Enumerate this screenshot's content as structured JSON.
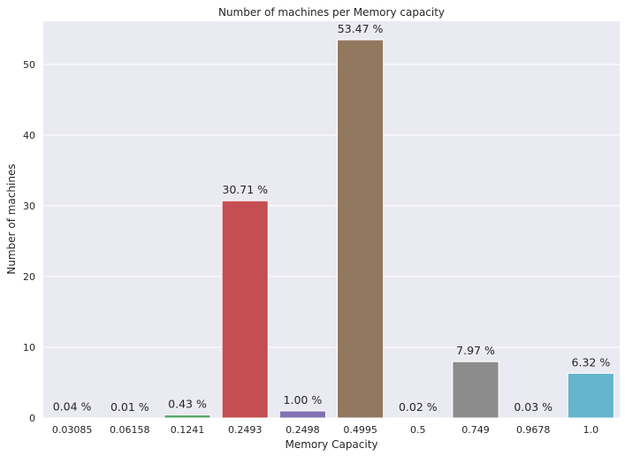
{
  "chart_data": {
    "type": "bar",
    "title": "Number of machines per Memory capacity",
    "xlabel": "Memory Capacity",
    "ylabel": "Number of machines",
    "categories": [
      "0.03085",
      "0.06158",
      "0.1241",
      "0.2493",
      "0.2498",
      "0.4995",
      "0.5",
      "0.749",
      "0.9678",
      "1.0"
    ],
    "values": [
      0.04,
      0.01,
      0.43,
      30.71,
      1.0,
      53.47,
      0.02,
      7.97,
      0.03,
      6.32
    ],
    "data_labels": [
      "0.04 %",
      "0.01 %",
      "0.43 %",
      "30.71 %",
      "1.00 %",
      "53.47 %",
      "0.02 %",
      "7.97 %",
      "0.03 %",
      "6.32 %"
    ],
    "colors": [
      "#4c72b0",
      "#dd8452",
      "#55a868",
      "#c44e52",
      "#8172b3",
      "#937860",
      "#da8bc3",
      "#8c8c8c",
      "#ccb974",
      "#64b5cd"
    ],
    "ylim": [
      0,
      56.1
    ],
    "yticks": [
      0,
      10,
      20,
      30,
      40,
      50
    ],
    "grid": true,
    "background": "#eaeaf2"
  }
}
